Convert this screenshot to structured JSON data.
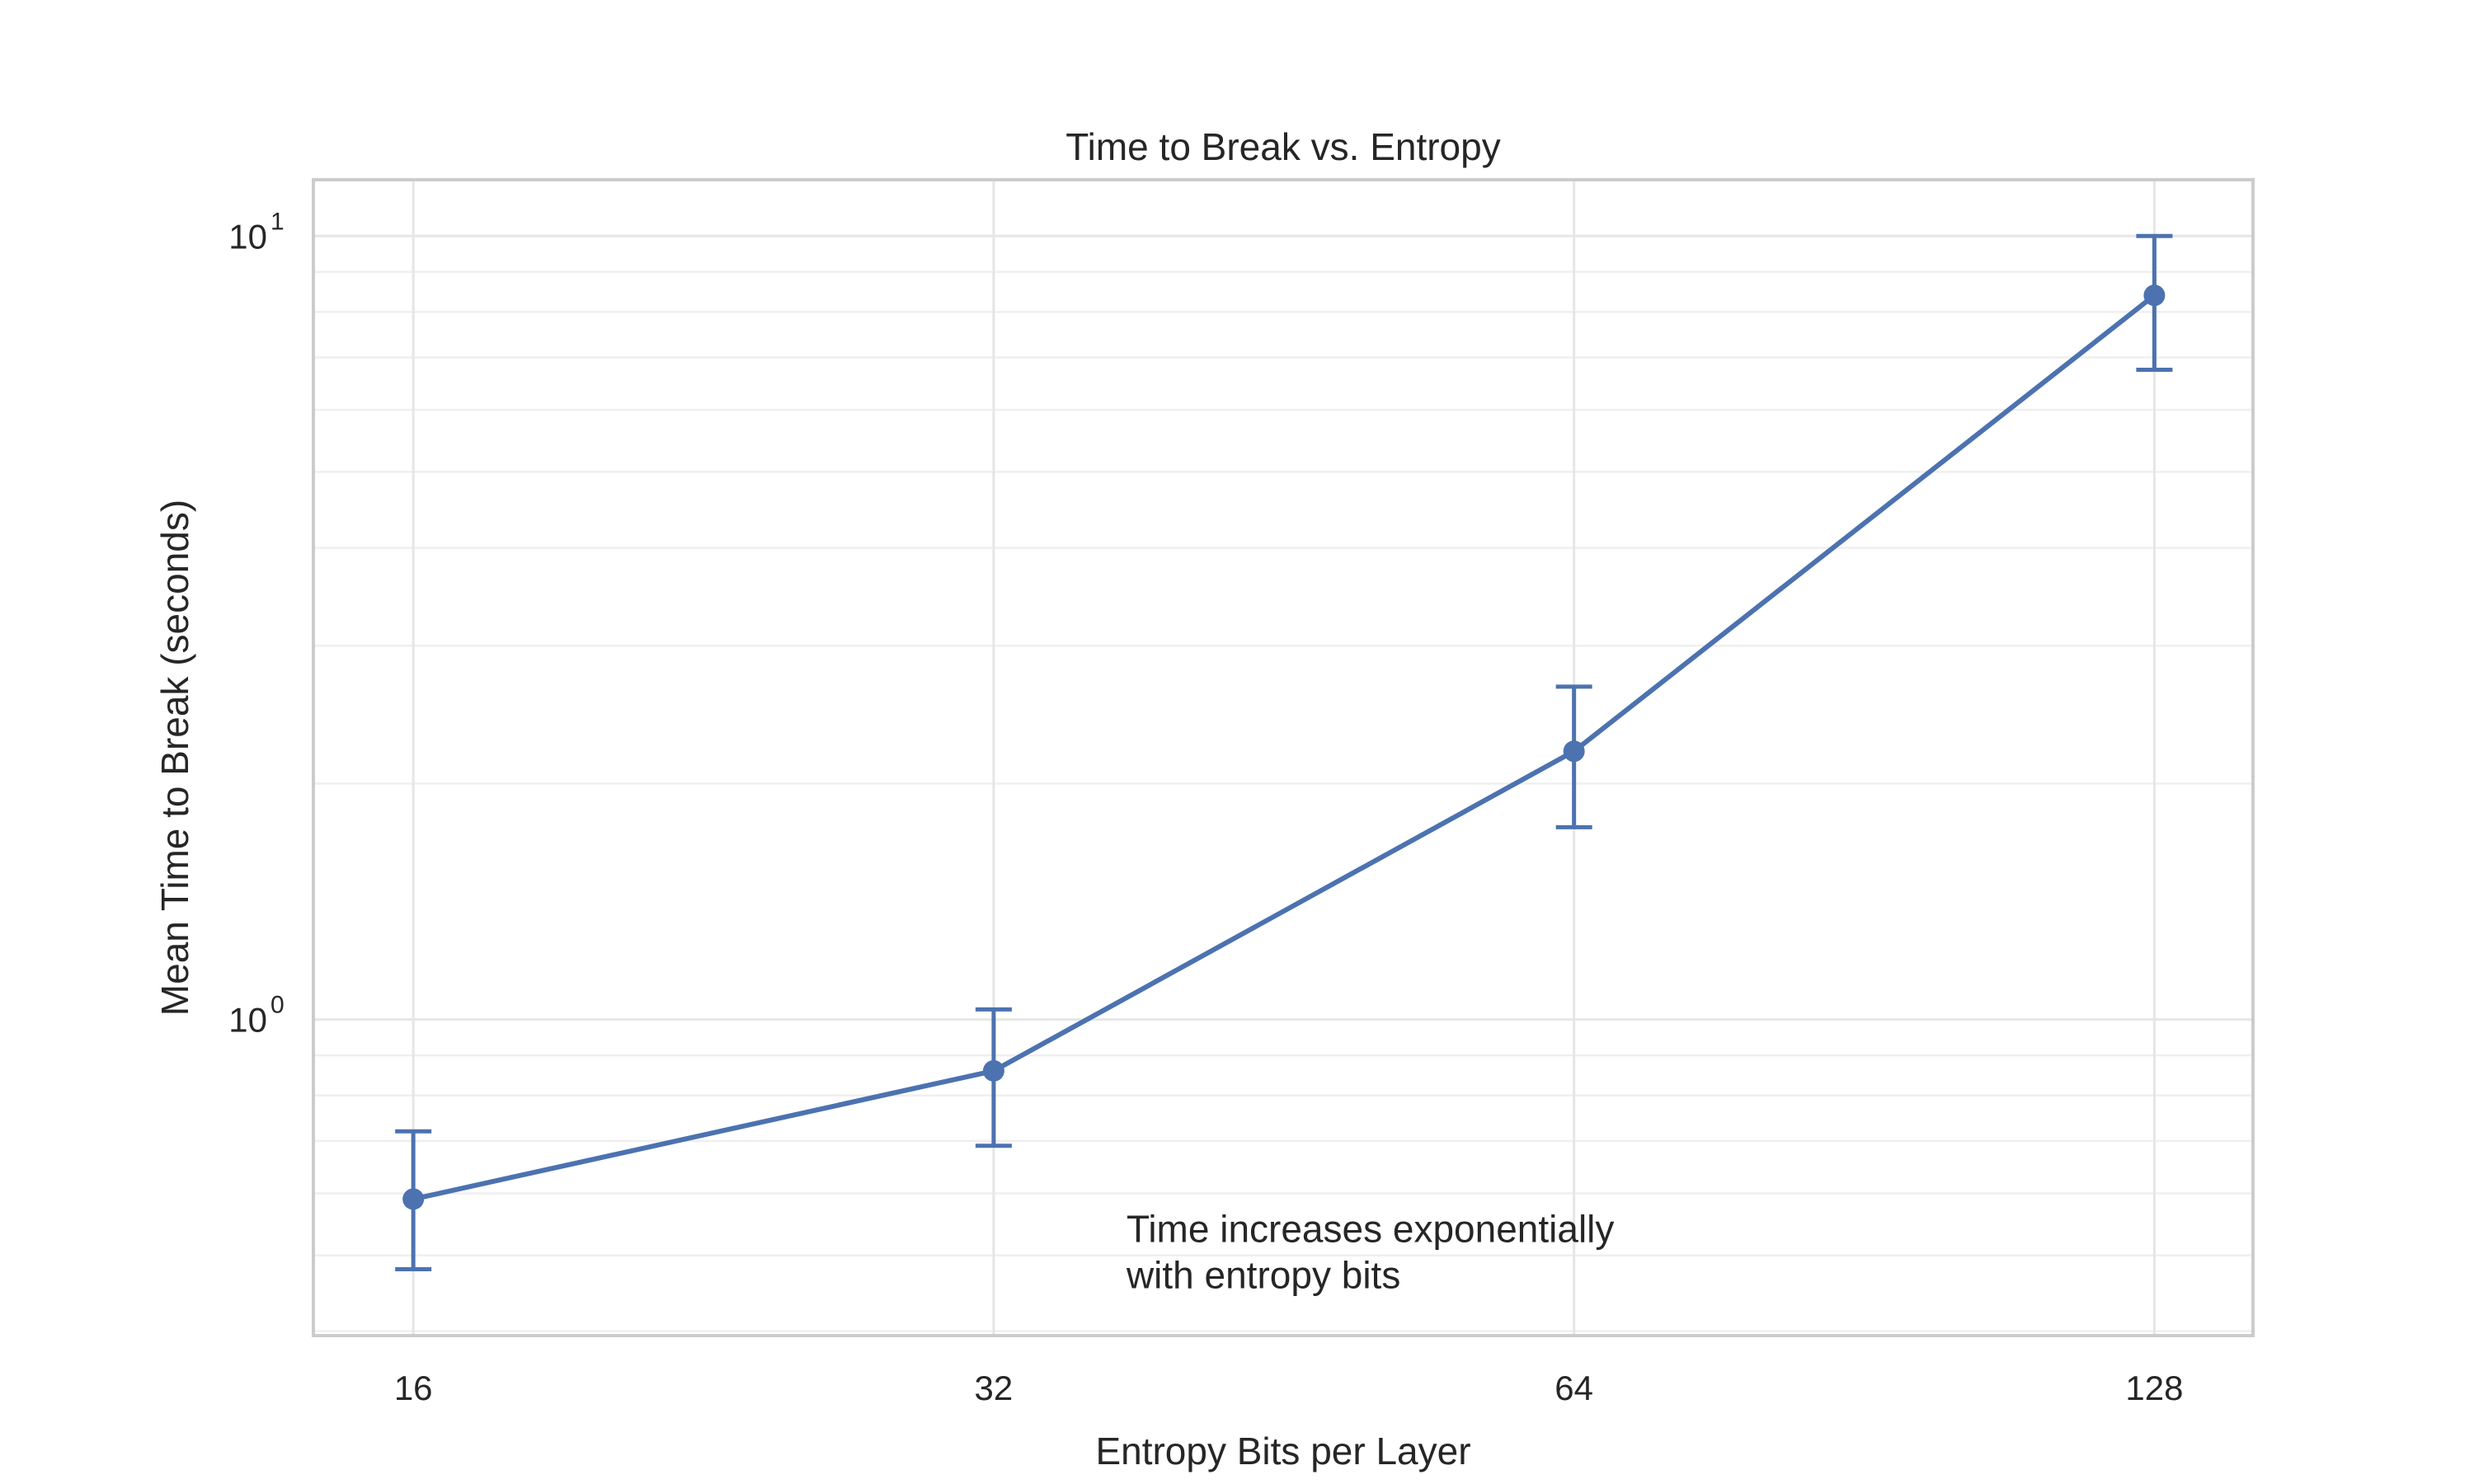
{
  "chart_data": {
    "type": "line",
    "title": "Time to Break vs. Entropy",
    "xlabel": "Entropy Bits per Layer",
    "ylabel": "Mean Time to Break (seconds)",
    "x_scale": "log2",
    "y_scale": "log10",
    "x": [
      16,
      32,
      64,
      128
    ],
    "x_tick_labels": [
      "16",
      "32",
      "64",
      "128"
    ],
    "y_ticks": [
      {
        "value": 1,
        "base": "10",
        "exp": "0"
      },
      {
        "value": 10,
        "base": "10",
        "exp": "1"
      }
    ],
    "xlim": [
      14.2,
      144
    ],
    "ylim": [
      0.395,
      11.8
    ],
    "grid": true,
    "series": [
      {
        "values": [
          0.59,
          0.86,
          2.2,
          8.4
        ],
        "error_low": [
          0.48,
          0.69,
          1.76,
          6.75
        ],
        "error_high": [
          0.72,
          1.03,
          2.66,
          10.0
        ],
        "color": "#4c72b0"
      }
    ],
    "annotations": [
      {
        "lines": [
          "Time increases exponentially",
          "with entropy bits"
        ],
        "x": 37.5,
        "y": 0.52
      }
    ]
  }
}
